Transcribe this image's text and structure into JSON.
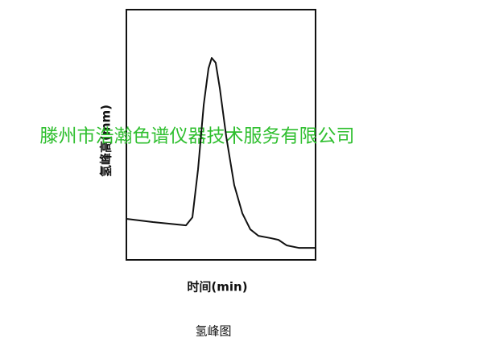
{
  "chart_data": {
    "type": "line",
    "title": "氢峰图",
    "xlabel": "时间(min)",
    "ylabel": "氢峰高(mm)",
    "watermark": "滕州市浩瀚色谱仪器技术服务有限公司",
    "x": [
      0,
      14,
      31.5,
      34.9,
      37.9,
      40.9,
      43.4,
      45.1,
      47.2,
      49.4,
      52.8,
      57.0,
      61.3,
      65.5,
      69.8,
      76.2,
      80.4,
      84.7,
      91.1,
      100
    ],
    "series": [
      {
        "color": "#111111",
        "values": [
          16.4,
          15.1,
          13.8,
          17.0,
          36.3,
          62.1,
          76.5,
          80.7,
          78.8,
          68.5,
          49.2,
          29.9,
          18.6,
          12.2,
          9.6,
          8.7,
          8.0,
          5.8,
          4.8,
          4.8
        ]
      }
    ],
    "xlim": [
      0,
      100
    ],
    "ylim": [
      0,
      100
    ]
  }
}
